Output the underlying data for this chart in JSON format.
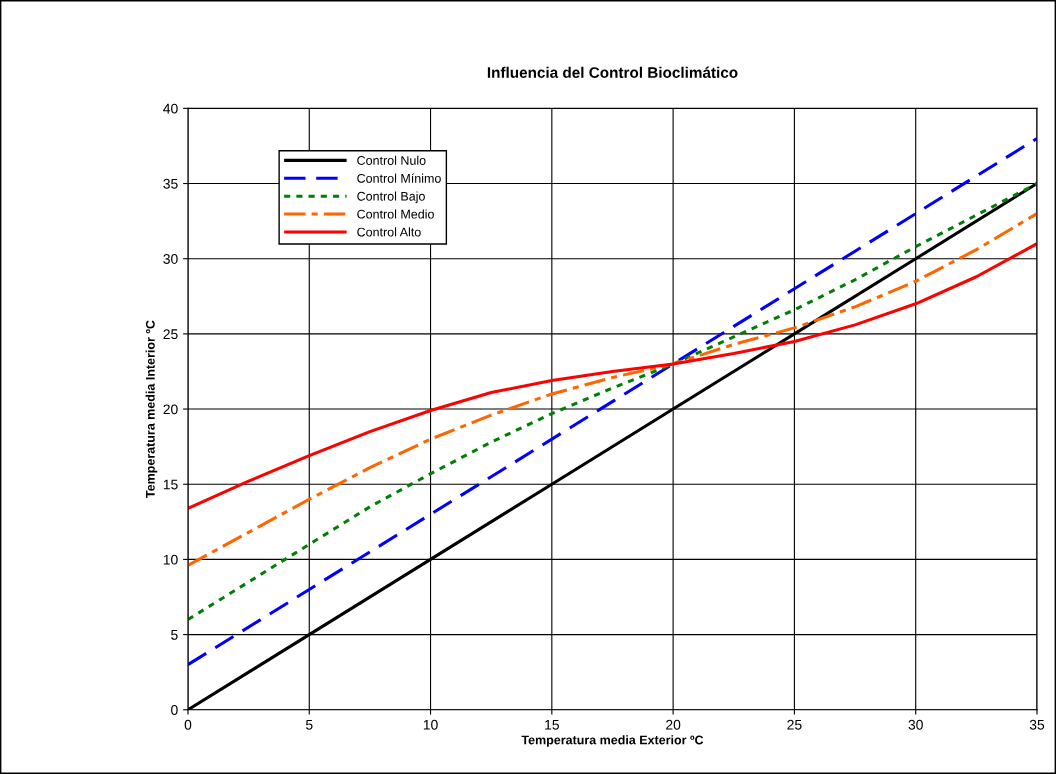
{
  "chart_data": {
    "type": "line",
    "title": "Influencia del Control Bioclimático",
    "xlabel": "Temperatura media Exterior ºC",
    "ylabel": "Temperatura media Interior ºC",
    "xlim": [
      0,
      35
    ],
    "ylim": [
      0,
      40
    ],
    "xticks": [
      0,
      5,
      10,
      15,
      20,
      25,
      30,
      35
    ],
    "yticks": [
      0,
      5,
      10,
      15,
      20,
      25,
      30,
      35,
      40
    ],
    "grid": true,
    "legend": "top left",
    "series": [
      {
        "name": "Control Nulo",
        "color": "#000000",
        "line_style": "solid",
        "x": [
          0,
          5,
          10,
          15,
          20,
          25,
          30,
          35
        ],
        "values": [
          0,
          5,
          10,
          15,
          20,
          25,
          30,
          35
        ]
      },
      {
        "name": "Control Mínimo",
        "color": "#0000ff",
        "line_style": "dashed",
        "x": [
          0,
          5,
          10,
          15,
          20,
          25,
          30,
          35
        ],
        "values": [
          3,
          8,
          13,
          18,
          23,
          28,
          33,
          38
        ]
      },
      {
        "name": "Control Bajo",
        "color": "#008000",
        "line_style": "dotted",
        "x": [
          0,
          2.5,
          5,
          7.5,
          10,
          12.5,
          15,
          17.5,
          20,
          22.5,
          25,
          27.5,
          30,
          32.5,
          35
        ],
        "values": [
          6,
          8.5,
          11,
          13.5,
          15.7,
          17.8,
          19.7,
          21.4,
          23,
          24.8,
          26.6,
          28.6,
          30.8,
          32.9,
          35
        ]
      },
      {
        "name": "Control Medio",
        "color": "#ff6600",
        "line_style": "dashdot",
        "x": [
          0,
          2.5,
          5,
          7.5,
          10,
          12.5,
          15,
          17.5,
          20,
          22.5,
          25,
          27.5,
          30,
          32.5,
          35
        ],
        "values": [
          9.6,
          11.8,
          14,
          16.1,
          18,
          19.6,
          21,
          22.1,
          23,
          24.3,
          25.4,
          26.8,
          28.5,
          30.6,
          33
        ]
      },
      {
        "name": "Control Alto",
        "color": "#ff0000",
        "line_style": "solid",
        "x": [
          0,
          2.5,
          5,
          7.5,
          10,
          12.5,
          15,
          17.5,
          20,
          22.5,
          25,
          27.5,
          30,
          32.5,
          35
        ],
        "values": [
          13.4,
          15.2,
          16.9,
          18.5,
          19.9,
          21.1,
          21.9,
          22.5,
          23,
          23.7,
          24.5,
          25.6,
          27,
          28.8,
          31
        ]
      }
    ]
  }
}
